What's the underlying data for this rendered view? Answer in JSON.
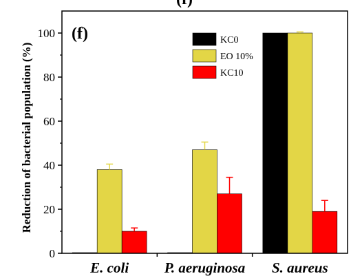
{
  "chart_data": {
    "type": "bar",
    "panel_label": "(f)",
    "top_label": "(f)",
    "ylabel": "Reduction of bacterial population (%)",
    "xlabel": "",
    "ylim": [
      0,
      110
    ],
    "yticks": [
      0,
      20,
      40,
      60,
      80,
      100
    ],
    "categories": [
      "E. coli",
      "P. aeruginosa",
      "S. aureus"
    ],
    "legend_position": "top-right",
    "series": [
      {
        "name": "KC0",
        "color": "#000000",
        "values": [
          0.3,
          0.3,
          100
        ],
        "errors": [
          0,
          0,
          0
        ]
      },
      {
        "name": "EO 10%",
        "color": "#E3D646",
        "values": [
          38,
          47,
          100
        ],
        "errors": [
          2.5,
          3.5,
          0.5
        ]
      },
      {
        "name": "KC10",
        "color": "#FF0000",
        "values": [
          10,
          27,
          19
        ],
        "errors": [
          1.5,
          7.5,
          5
        ]
      }
    ]
  }
}
